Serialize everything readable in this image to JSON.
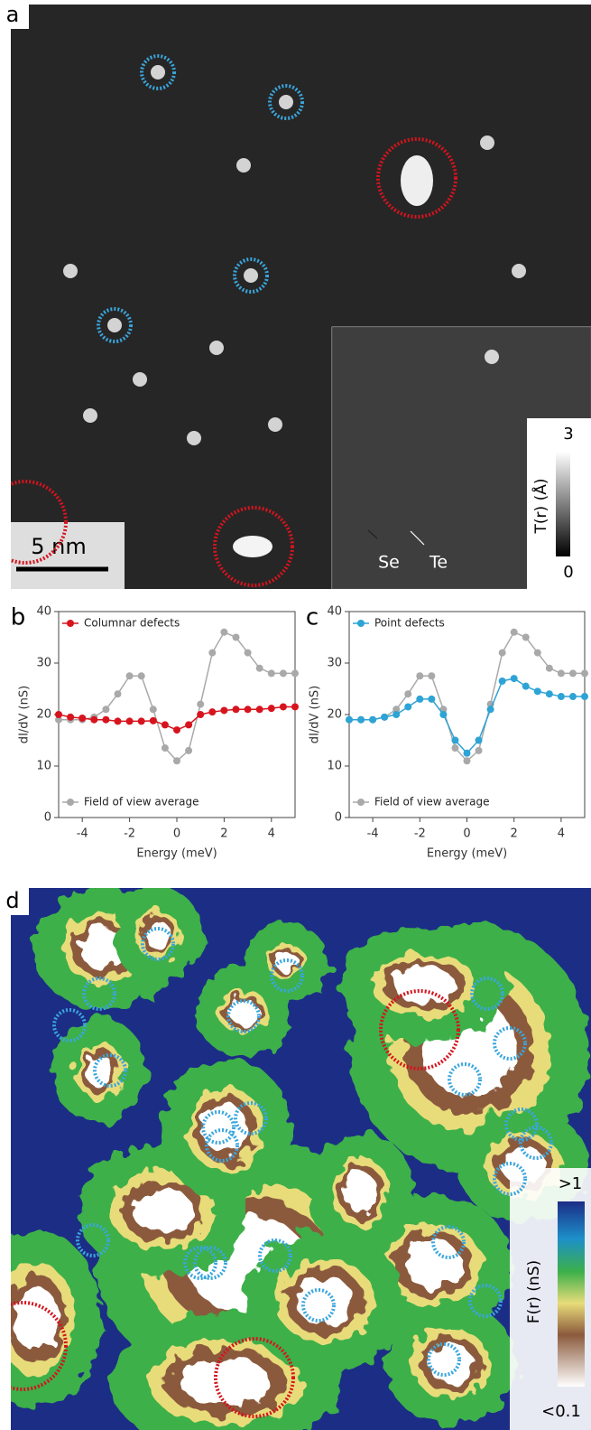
{
  "panel_a": {
    "label": "a",
    "scale_bar": "5 nm",
    "arrow_labels": [
      "Se",
      "Te"
    ],
    "colorbar": {
      "label": "T(r) (Å)",
      "min": 0,
      "max": 3
    }
  },
  "panel_b_label": "b",
  "panel_c_label": "c",
  "panel_d": {
    "label": "d",
    "colorbar": {
      "label": "F(r) (nS)",
      "max_label": ">1",
      "min_label": "<0.1"
    }
  },
  "chart_data": [
    {
      "type": "line",
      "xlabel": "Energy (meV)",
      "ylabel": "dI/dV (nS)",
      "x": [
        -5,
        -4.5,
        -4,
        -3.5,
        -3,
        -2.5,
        -2,
        -1.5,
        -1,
        -0.5,
        0,
        0.5,
        1,
        1.5,
        2,
        2.5,
        3,
        3.5,
        4,
        4.5,
        5
      ],
      "xlim": [
        -5,
        5
      ],
      "xticks": [
        -4,
        -2,
        0,
        2,
        4
      ],
      "ylim": [
        0,
        40
      ],
      "yticks": [
        0,
        10,
        20,
        30,
        40
      ],
      "series": [
        {
          "name": "Field of view average",
          "color": "#a9a9a9",
          "legend_position": "lower left",
          "values": [
            19,
            19,
            19,
            19.5,
            21,
            24,
            27.5,
            27.5,
            21,
            13.5,
            11,
            13,
            22,
            32,
            36,
            35,
            32,
            29,
            28,
            28,
            28
          ]
        },
        {
          "name": "Columnar defects",
          "color": "#d7141e",
          "legend_position": "upper left",
          "values": [
            20,
            19.5,
            19.3,
            19,
            19,
            18.7,
            18.7,
            18.7,
            18.8,
            18,
            17,
            18,
            20,
            20.5,
            20.8,
            21,
            21,
            21,
            21.2,
            21.5,
            21.5
          ]
        }
      ]
    },
    {
      "type": "line",
      "xlabel": "Energy (meV)",
      "ylabel": "dI/dV (nS)",
      "x": [
        -5,
        -4.5,
        -4,
        -3.5,
        -3,
        -2.5,
        -2,
        -1.5,
        -1,
        -0.5,
        0,
        0.5,
        1,
        1.5,
        2,
        2.5,
        3,
        3.5,
        4,
        4.5,
        5
      ],
      "xlim": [
        -5,
        5
      ],
      "xticks": [
        -4,
        -2,
        0,
        2,
        4
      ],
      "ylim": [
        0,
        40
      ],
      "yticks": [
        0,
        10,
        20,
        30,
        40
      ],
      "series": [
        {
          "name": "Field of view average",
          "color": "#a9a9a9",
          "legend_position": "lower left",
          "values": [
            19,
            19,
            19,
            19.5,
            21,
            24,
            27.5,
            27.5,
            21,
            13.5,
            11,
            13,
            22,
            32,
            36,
            35,
            32,
            29,
            28,
            28,
            28
          ]
        },
        {
          "name": "Point defects",
          "color": "#2ea3d5",
          "legend_position": "upper left",
          "values": [
            19,
            19,
            19,
            19.5,
            20,
            21.5,
            23,
            23,
            20,
            15,
            12.5,
            15,
            21,
            26.5,
            27,
            25.5,
            24.5,
            24,
            23.5,
            23.5,
            23.5
          ]
        }
      ]
    }
  ]
}
